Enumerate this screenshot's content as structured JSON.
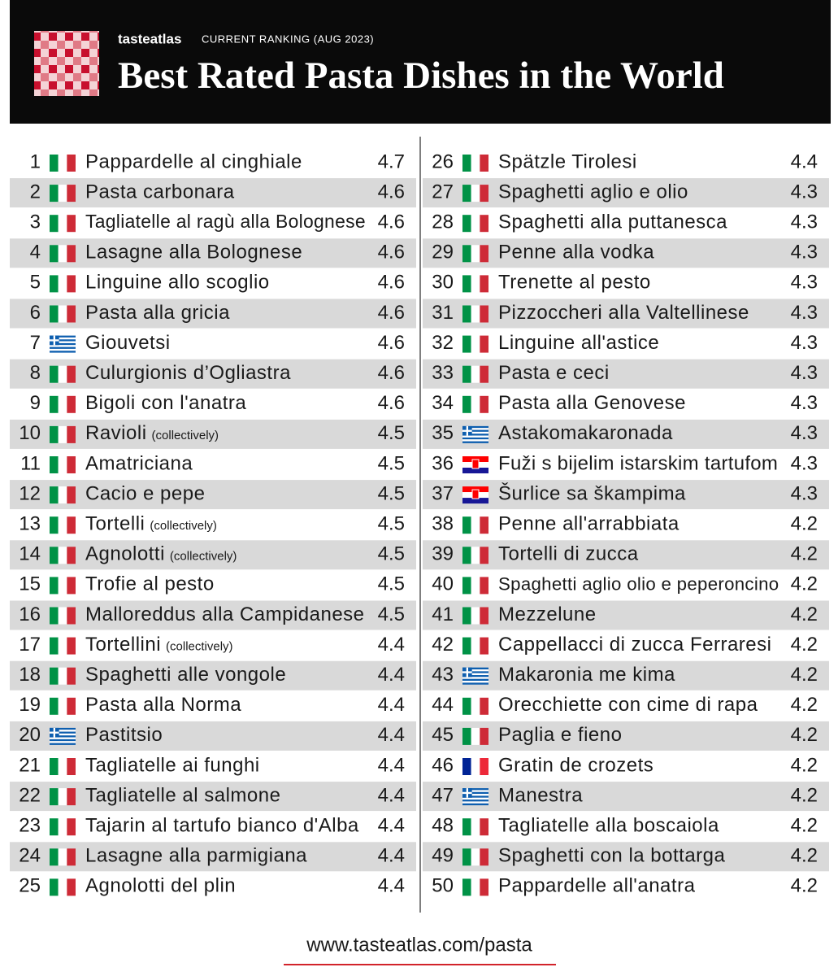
{
  "header": {
    "brand": "tasteatlas",
    "subtitle": "CURRENT RANKING (AUG 2023)",
    "title": "Best Rated Pasta Dishes in the World"
  },
  "table": {
    "rows": [
      {
        "rank": 1,
        "flag": "it",
        "name": "Pappardelle al cinghiale",
        "rating": 4.7
      },
      {
        "rank": 2,
        "flag": "it",
        "name": "Pasta carbonara",
        "rating": 4.6
      },
      {
        "rank": 3,
        "flag": "it",
        "name": "Tagliatelle al ragù alla Bolognese",
        "rating": 4.6
      },
      {
        "rank": 4,
        "flag": "it",
        "name": "Lasagne alla Bolognese",
        "rating": 4.6
      },
      {
        "rank": 5,
        "flag": "it",
        "name": "Linguine allo scoglio",
        "rating": 4.6
      },
      {
        "rank": 6,
        "flag": "it",
        "name": "Pasta alla gricia",
        "rating": 4.6
      },
      {
        "rank": 7,
        "flag": "gr",
        "name": "Giouvetsi",
        "rating": 4.6
      },
      {
        "rank": 8,
        "flag": "it",
        "name": "Culurgionis d’Ogliastra",
        "rating": 4.6
      },
      {
        "rank": 9,
        "flag": "it",
        "name": "Bigoli con l'anatra",
        "rating": 4.6
      },
      {
        "rank": 10,
        "flag": "it",
        "name": "Ravioli",
        "note": "(collectively)",
        "rating": 4.5
      },
      {
        "rank": 11,
        "flag": "it",
        "name": "Amatriciana",
        "rating": 4.5
      },
      {
        "rank": 12,
        "flag": "it",
        "name": "Cacio e pepe",
        "rating": 4.5
      },
      {
        "rank": 13,
        "flag": "it",
        "name": "Tortelli",
        "note": "(collectively)",
        "rating": 4.5
      },
      {
        "rank": 14,
        "flag": "it",
        "name": "Agnolotti",
        "note": "(collectively)",
        "rating": 4.5
      },
      {
        "rank": 15,
        "flag": "it",
        "name": "Trofie al pesto",
        "rating": 4.5
      },
      {
        "rank": 16,
        "flag": "it",
        "name": "Malloreddus alla Campidanese",
        "rating": 4.5
      },
      {
        "rank": 17,
        "flag": "it",
        "name": "Tortellini",
        "note": "(collectively)",
        "rating": 4.4
      },
      {
        "rank": 18,
        "flag": "it",
        "name": "Spaghetti alle vongole",
        "rating": 4.4
      },
      {
        "rank": 19,
        "flag": "it",
        "name": "Pasta alla Norma",
        "rating": 4.4
      },
      {
        "rank": 20,
        "flag": "gr",
        "name": "Pastitsio",
        "rating": 4.4
      },
      {
        "rank": 21,
        "flag": "it",
        "name": "Tagliatelle ai funghi",
        "rating": 4.4
      },
      {
        "rank": 22,
        "flag": "it",
        "name": "Tagliatelle al salmone",
        "rating": 4.4
      },
      {
        "rank": 23,
        "flag": "it",
        "name": "Tajarin al tartufo bianco d'Alba",
        "rating": 4.4
      },
      {
        "rank": 24,
        "flag": "it",
        "name": "Lasagne alla parmigiana",
        "rating": 4.4
      },
      {
        "rank": 25,
        "flag": "it",
        "name": "Agnolotti del plin",
        "rating": 4.4
      },
      {
        "rank": 26,
        "flag": "it",
        "name": "Spätzle Tirolesi",
        "rating": 4.4
      },
      {
        "rank": 27,
        "flag": "it",
        "name": "Spaghetti aglio e olio",
        "rating": 4.3
      },
      {
        "rank": 28,
        "flag": "it",
        "name": "Spaghetti alla puttanesca",
        "rating": 4.3
      },
      {
        "rank": 29,
        "flag": "it",
        "name": "Penne alla vodka",
        "rating": 4.3
      },
      {
        "rank": 30,
        "flag": "it",
        "name": "Trenette al pesto",
        "rating": 4.3
      },
      {
        "rank": 31,
        "flag": "it",
        "name": "Pizzoccheri alla Valtellinese",
        "rating": 4.3
      },
      {
        "rank": 32,
        "flag": "it",
        "name": "Linguine all'astice",
        "rating": 4.3
      },
      {
        "rank": 33,
        "flag": "it",
        "name": "Pasta e ceci",
        "rating": 4.3
      },
      {
        "rank": 34,
        "flag": "it",
        "name": "Pasta alla Genovese",
        "rating": 4.3
      },
      {
        "rank": 35,
        "flag": "gr",
        "name": "Astakomakaronada",
        "rating": 4.3
      },
      {
        "rank": 36,
        "flag": "hr",
        "name": "Fuži s bijelim istarskim tartufom",
        "rating": 4.3
      },
      {
        "rank": 37,
        "flag": "hr",
        "name": "Šurlice sa škampima",
        "rating": 4.3
      },
      {
        "rank": 38,
        "flag": "it",
        "name": "Penne all'arrabbiata",
        "rating": 4.2
      },
      {
        "rank": 39,
        "flag": "it",
        "name": "Tortelli di zucca",
        "rating": 4.2
      },
      {
        "rank": 40,
        "flag": "it",
        "name": "Spaghetti aglio olio e peperoncino",
        "rating": 4.2
      },
      {
        "rank": 41,
        "flag": "it",
        "name": "Mezzelune",
        "rating": 4.2
      },
      {
        "rank": 42,
        "flag": "it",
        "name": "Cappellacci di zucca Ferraresi",
        "rating": 4.2
      },
      {
        "rank": 43,
        "flag": "gr",
        "name": "Makaronia me kima",
        "rating": 4.2
      },
      {
        "rank": 44,
        "flag": "it",
        "name": "Orecchiette con cime di rapa",
        "rating": 4.2
      },
      {
        "rank": 45,
        "flag": "it",
        "name": "Paglia e fieno",
        "rating": 4.2
      },
      {
        "rank": 46,
        "flag": "fr",
        "name": "Gratin de crozets",
        "rating": 4.2
      },
      {
        "rank": 47,
        "flag": "gr",
        "name": "Manestra",
        "rating": 4.2
      },
      {
        "rank": 48,
        "flag": "it",
        "name": "Tagliatelle alla boscaiola",
        "rating": 4.2
      },
      {
        "rank": 49,
        "flag": "it",
        "name": "Spaghetti con la bottarga",
        "rating": 4.2
      },
      {
        "rank": 50,
        "flag": "it",
        "name": "Pappardelle all'anatra",
        "rating": 4.2
      }
    ]
  },
  "footer": {
    "url": "www.tasteatlas.com/pasta"
  }
}
